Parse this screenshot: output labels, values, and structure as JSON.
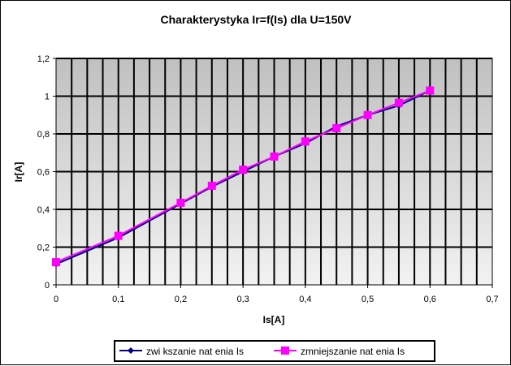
{
  "chart_data": {
    "type": "line",
    "title": "Charakterystyka Ir=f(Is) dla U=150V",
    "xlabel": "Is[A]",
    "ylabel": "Ir[A]",
    "xlim": [
      0,
      0.7
    ],
    "ylim": [
      0,
      1.2
    ],
    "xticks": [
      "0",
      "0,1",
      "0,2",
      "0,3",
      "0,4",
      "0,5",
      "0,6",
      "0,7"
    ],
    "yticks": [
      "0",
      "0,2",
      "0,4",
      "0,6",
      "0,8",
      "1",
      "1,2"
    ],
    "grid": true,
    "legend_position": "bottom",
    "series": [
      {
        "name": "zwi  kszanie nat    enia Is",
        "color": "#000080",
        "marker": "diamond",
        "x": [
          0,
          0.1,
          0.2,
          0.25,
          0.3,
          0.35,
          0.4,
          0.45,
          0.5,
          0.55,
          0.6
        ],
        "y": [
          0.11,
          0.25,
          0.43,
          0.52,
          0.6,
          0.68,
          0.75,
          0.84,
          0.9,
          0.95,
          1.03
        ]
      },
      {
        "name": "zmniejszanie nat    enia Is",
        "color": "#ff00ff",
        "marker": "square",
        "x": [
          0,
          0.1,
          0.2,
          0.25,
          0.3,
          0.35,
          0.4,
          0.45,
          0.5,
          0.55,
          0.6
        ],
        "y": [
          0.12,
          0.26,
          0.435,
          0.525,
          0.61,
          0.68,
          0.76,
          0.83,
          0.9,
          0.965,
          1.03
        ]
      }
    ]
  }
}
